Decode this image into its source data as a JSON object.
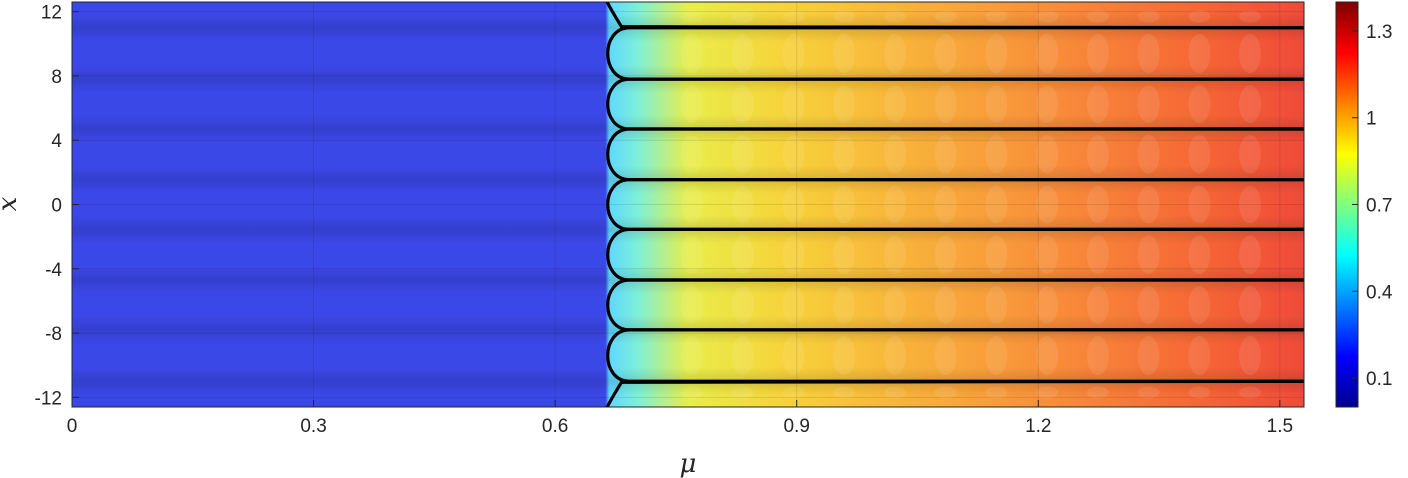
{
  "chart_data": {
    "type": "heatmap",
    "title": "",
    "xlabel": "μ",
    "ylabel": "x",
    "xlim": [
      0,
      1.53
    ],
    "ylim": [
      -12.6,
      12.6
    ],
    "x_ticks": [
      "0",
      "0.3",
      "0.6",
      "0.9",
      "1.2",
      "1.5"
    ],
    "y_ticks": [
      "12",
      "8",
      "4",
      "0",
      "-4",
      "-8",
      "-12"
    ],
    "x_tick_values": [
      0,
      0.3,
      0.6,
      0.9,
      1.2,
      1.5
    ],
    "y_tick_values": [
      12,
      8,
      4,
      0,
      -4,
      -8,
      -12
    ],
    "colormap": "jet",
    "clim": [
      0,
      1.4
    ],
    "colorbar_ticks": [
      "1.3",
      "1",
      "0.7",
      "0.4",
      "0.1"
    ],
    "colorbar_tick_values": [
      1.3,
      1.0,
      0.7,
      0.4,
      0.1
    ],
    "transition_mu": 0.665,
    "contour_lines_x": [
      11.0,
      7.8,
      4.7,
      1.55,
      -1.55,
      -4.7,
      -7.8,
      -11.0
    ],
    "grid": true,
    "legend": "none"
  }
}
